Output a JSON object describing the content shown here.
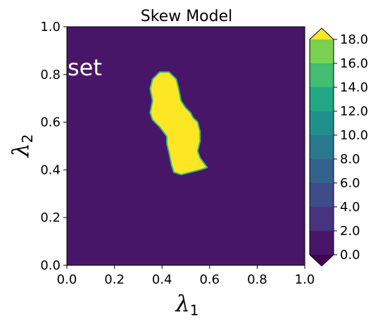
{
  "chart_data": {
    "type": "heatmap",
    "title": "Skew Model",
    "xlabel": {
      "symbol": "λ",
      "subscript": "1"
    },
    "ylabel": {
      "symbol": "λ",
      "subscript": "2"
    },
    "xlim": [
      0.0,
      1.0
    ],
    "ylim": [
      0.0,
      1.0
    ],
    "xticks": [
      "0.0",
      "0.2",
      "0.4",
      "0.6",
      "0.8",
      "1.0"
    ],
    "yticks": [
      "0.0",
      "0.2",
      "0.4",
      "0.6",
      "0.8",
      "1.0"
    ],
    "annotation": "set",
    "background_level_color": "#481668",
    "region": {
      "value": ">16.0",
      "fill": "#fde725",
      "edge": "#35b779",
      "boundary": [
        [
          0.36,
          0.78
        ],
        [
          0.39,
          0.81
        ],
        [
          0.43,
          0.81
        ],
        [
          0.46,
          0.78
        ],
        [
          0.47,
          0.74
        ],
        [
          0.48,
          0.69
        ],
        [
          0.5,
          0.66
        ],
        [
          0.52,
          0.64
        ],
        [
          0.53,
          0.62
        ],
        [
          0.55,
          0.6
        ],
        [
          0.56,
          0.56
        ],
        [
          0.56,
          0.52
        ],
        [
          0.55,
          0.48
        ],
        [
          0.56,
          0.45
        ],
        [
          0.59,
          0.41
        ],
        [
          0.56,
          0.4
        ],
        [
          0.52,
          0.39
        ],
        [
          0.48,
          0.38
        ],
        [
          0.45,
          0.39
        ],
        [
          0.44,
          0.42
        ],
        [
          0.43,
          0.47
        ],
        [
          0.42,
          0.51
        ],
        [
          0.42,
          0.54
        ],
        [
          0.39,
          0.58
        ],
        [
          0.36,
          0.61
        ],
        [
          0.35,
          0.64
        ],
        [
          0.36,
          0.69
        ],
        [
          0.35,
          0.74
        ]
      ]
    },
    "colorbar": {
      "levels": [
        0.0,
        2.0,
        4.0,
        6.0,
        8.0,
        10.0,
        12.0,
        14.0,
        16.0,
        18.0
      ],
      "tick_labels": [
        "0.0",
        "2.0",
        "4.0",
        "6.0",
        "8.0",
        "10.0",
        "12.0",
        "14.0",
        "16.0",
        "18.0"
      ],
      "colors": [
        "#481668",
        "#463480",
        "#3e4c8a",
        "#33628d",
        "#2a788e",
        "#21908d",
        "#22a785",
        "#42bd71",
        "#7ad151",
        "#c2df23"
      ],
      "under_color": "#440154",
      "over_color": "#fde725",
      "extend": "both"
    }
  }
}
